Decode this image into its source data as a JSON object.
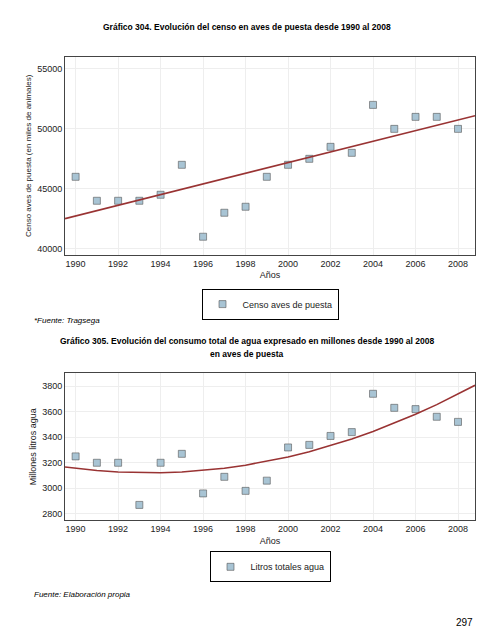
{
  "chart_data": [
    {
      "type": "scatter",
      "title": "Gráfico 304. Evolución del censo en aves de puesta desde 1990 al 2008",
      "xlabel": "Años",
      "ylabel": "Censo aves de puesta (en miles de animales)",
      "x": [
        1990,
        1991,
        1992,
        1993,
        1994,
        1995,
        1996,
        1997,
        1998,
        1999,
        2000,
        2001,
        2002,
        2003,
        2004,
        2005,
        2006,
        2007,
        2008
      ],
      "series": [
        {
          "name": "Censo aves de puesta",
          "type": "scatter",
          "marker": "square",
          "color": "#A8C4D4",
          "values": [
            46000,
            44000,
            44000,
            44000,
            44500,
            47000,
            41000,
            43000,
            43500,
            46000,
            47000,
            47500,
            48500,
            48000,
            52000,
            50000,
            51000,
            51000,
            50000
          ]
        },
        {
          "type": "line",
          "color": "#993333",
          "line_style": "solid",
          "x": [
            1989.5,
            2008.8
          ],
          "values": [
            42511.842,
            51095.263
          ]
        }
      ],
      "xlim": [
        1989.5,
        2008.8
      ],
      "xticks": [
        1990,
        1992,
        1994,
        1996,
        1998,
        2000,
        2002,
        2004,
        2006,
        2008
      ],
      "ylim": [
        39500,
        56000
      ],
      "yticks": [
        40000,
        45000,
        50000,
        55000
      ],
      "grid": true,
      "legend": "bottom",
      "annotations": [
        "*Fuente: Tragsega"
      ]
    },
    {
      "type": "scatter",
      "title": "Gráfico 305. Evolución del consumo total de agua expresado en millones desde 1990 al 2008",
      "subtitle": "en aves de puesta",
      "xlabel": "Años",
      "ylabel": "Millones litros agua",
      "x": [
        1990,
        1991,
        1992,
        1993,
        1994,
        1995,
        1996,
        1997,
        1998,
        1999,
        2000,
        2001,
        2002,
        2003,
        2004,
        2005,
        2006,
        2007,
        2008
      ],
      "series": [
        {
          "name": "Litros totales agua",
          "type": "scatter",
          "marker": "square",
          "color": "#A8C4D4",
          "values": [
            3250,
            3200,
            3200,
            2870,
            3200,
            3270,
            2960,
            3090,
            2980,
            3060,
            3320,
            3340,
            3410,
            3440,
            3740,
            3630,
            3620,
            3560,
            3520
          ]
        },
        {
          "type": "line",
          "color": "#993333",
          "line_style": "solid",
          "x": [
            1989.5,
            1990,
            1991,
            1992,
            1993,
            1994,
            1995,
            1996,
            1997,
            1998,
            1999,
            2000,
            2001,
            2002,
            2003,
            2004,
            2005,
            2006,
            2007,
            2008,
            2008.8
          ],
          "values": [
            3167.435,
            3156.556,
            3139.178,
            3127.638,
            3121.935,
            3122.071,
            3128.046,
            3139.858,
            3157.508,
            3180.996,
            3210.323,
            3245.488,
            3286.49,
            3333.331,
            3386.01,
            3444.528,
            3508.883,
            3579.076,
            3655.108,
            3736.977,
            3806.677
          ]
        }
      ],
      "xlim": [
        1989.5,
        2008.8
      ],
      "xticks": [
        1990,
        1992,
        1994,
        1996,
        1998,
        2000,
        2002,
        2004,
        2006,
        2008
      ],
      "ylim": [
        2750,
        3900
      ],
      "yticks": [
        2800,
        3000,
        3200,
        3400,
        3600,
        3800
      ],
      "grid": true,
      "legend": "bottom",
      "annotations": [
        "Fuente: Elaboración propia",
        "297"
      ]
    }
  ]
}
